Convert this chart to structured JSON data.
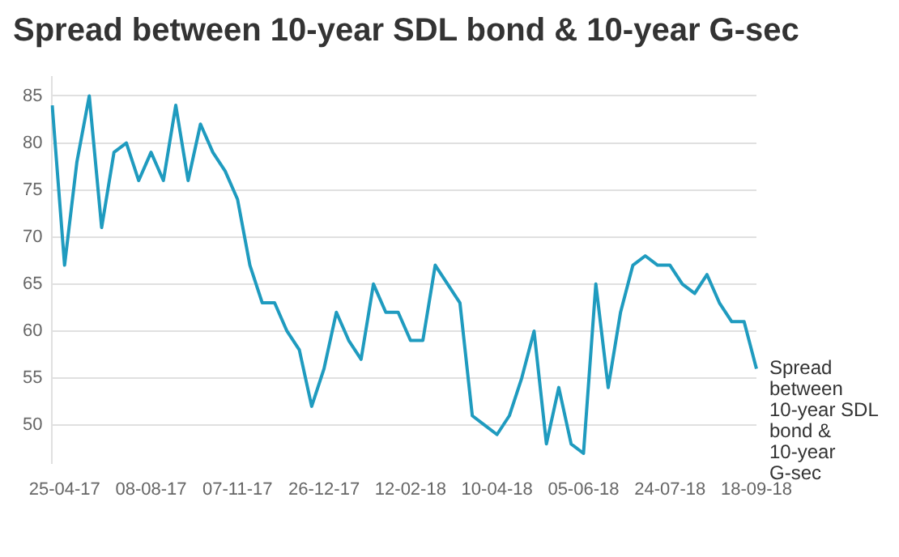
{
  "chart_data": {
    "type": "line",
    "title": "Spread between 10-year SDL bond & 10-year G-sec",
    "categories": [
      null,
      "25-04-17",
      null,
      null,
      null,
      null,
      null,
      null,
      "08-08-17",
      null,
      null,
      null,
      null,
      null,
      null,
      "07-11-17",
      null,
      null,
      null,
      null,
      null,
      null,
      "26-12-17",
      null,
      null,
      null,
      null,
      null,
      null,
      "12-02-18",
      null,
      null,
      null,
      null,
      null,
      null,
      "10-04-18",
      null,
      null,
      null,
      null,
      null,
      null,
      "05-06-18",
      null,
      null,
      null,
      null,
      null,
      null,
      "24-07-18",
      null,
      null,
      null,
      null,
      null,
      null,
      "18-09-18"
    ],
    "series": [
      {
        "name": "Spread between 10-year SDL bond & 10-year G-sec",
        "color": "#1f9bbf",
        "values": [
          84,
          67,
          78,
          85,
          71,
          79,
          80,
          76,
          79,
          76,
          84,
          76,
          82,
          79,
          77,
          74,
          67,
          63,
          63,
          60,
          58,
          52,
          56,
          62,
          59,
          57,
          65,
          62,
          62,
          59,
          59,
          67,
          65,
          63,
          51,
          50,
          49,
          51,
          55,
          60,
          48,
          54,
          48,
          47,
          65,
          54,
          62,
          67,
          68,
          67,
          67,
          65,
          64,
          66,
          63,
          61,
          61,
          56
        ]
      }
    ],
    "ylim": [
      46,
      87
    ],
    "yticks": [
      50,
      55,
      60,
      65,
      70,
      75,
      80,
      85
    ],
    "grid": "y",
    "legend": false,
    "marker": "none",
    "line_style": "solid"
  }
}
